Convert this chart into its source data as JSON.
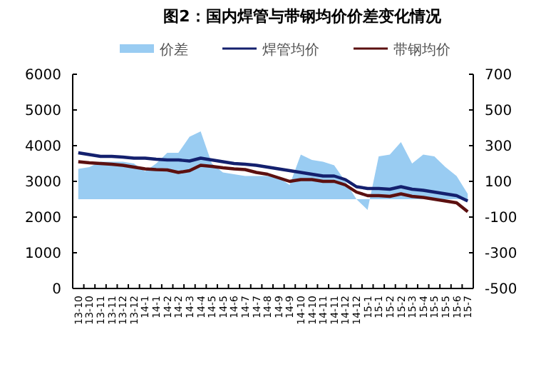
{
  "chart_data": {
    "type": "line",
    "title": "图2：国内焊管与带钢均价价差变化情况",
    "categories": [
      "13-10",
      "13-10",
      "13-11",
      "13-11",
      "13-12",
      "13-12",
      "14-1",
      "14-1",
      "14-2",
      "14-2",
      "14-3",
      "14-4",
      "14-5",
      "14-5",
      "14-6",
      "14-7",
      "14-7",
      "14-8",
      "14-9",
      "14-9",
      "14-10",
      "14-10",
      "14-11",
      "14-11",
      "14-12",
      "14-12",
      "15-1",
      "15-1",
      "15-2",
      "15-2",
      "15-3",
      "15-4",
      "15-5",
      "15-5",
      "15-6",
      "15-7"
    ],
    "series": [
      {
        "name": "价差",
        "type": "area",
        "axis": "y2",
        "color": "#99ccf2",
        "values": [
          170,
          180,
          210,
          210,
          210,
          200,
          156,
          200,
          260,
          260,
          350,
          380,
          200,
          150,
          140,
          130,
          130,
          130,
          120,
          80,
          250,
          220,
          210,
          190,
          100,
          0,
          -60,
          240,
          250,
          320,
          200,
          250,
          240,
          180,
          130,
          30
        ]
      },
      {
        "name": "焊管均价",
        "color": "#14206e",
        "values": [
          3800,
          3750,
          3700,
          3700,
          3680,
          3650,
          3650,
          3620,
          3600,
          3600,
          3570,
          3650,
          3600,
          3550,
          3500,
          3480,
          3450,
          3400,
          3350,
          3300,
          3250,
          3200,
          3150,
          3150,
          3050,
          2850,
          2800,
          2800,
          2780,
          2850,
          2780,
          2750,
          2700,
          2650,
          2600,
          2450
        ]
      },
      {
        "name": "带钢均价",
        "color": "#5c1010",
        "values": [
          3550,
          3520,
          3500,
          3480,
          3450,
          3400,
          3350,
          3330,
          3320,
          3250,
          3300,
          3450,
          3420,
          3380,
          3350,
          3330,
          3250,
          3200,
          3100,
          3000,
          3050,
          3050,
          3000,
          3000,
          2900,
          2700,
          2600,
          2600,
          2580,
          2650,
          2580,
          2550,
          2500,
          2450,
          2400,
          2150
        ]
      }
    ],
    "ylim": [
      0,
      6000
    ],
    "yticks": [
      0,
      1000,
      2000,
      3000,
      4000,
      5000,
      6000
    ],
    "y2lim": [
      -500,
      700
    ],
    "y2ticks": [
      -500,
      -300,
      -100,
      100,
      300,
      500,
      700
    ],
    "legend": "top",
    "grid": false
  }
}
